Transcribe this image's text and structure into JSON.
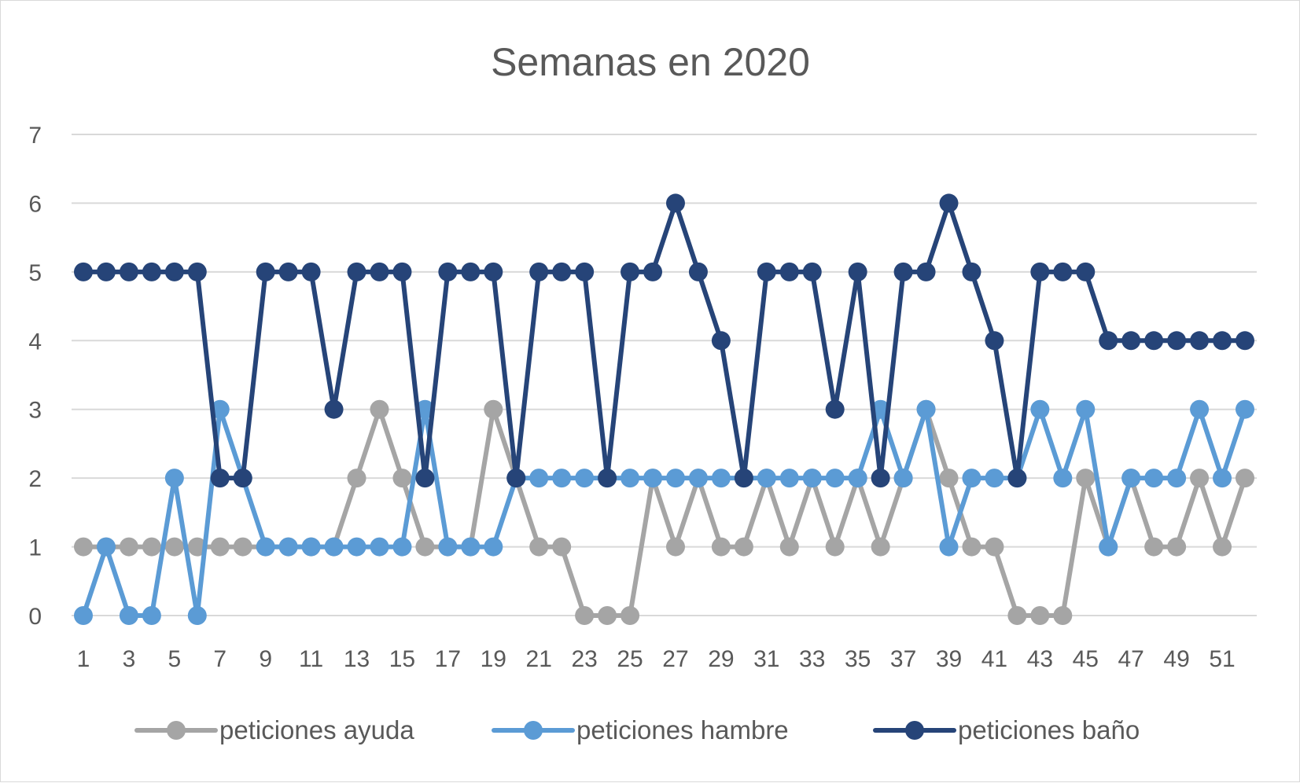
{
  "chart_data": {
    "type": "line",
    "title": "Semanas en 2020",
    "xlabel": "",
    "ylabel": "",
    "ylim": [
      0,
      7
    ],
    "yticks": [
      "0",
      "1",
      "2",
      "3",
      "4",
      "5",
      "6",
      "7"
    ],
    "x": [
      1,
      2,
      3,
      4,
      5,
      6,
      7,
      8,
      9,
      10,
      11,
      12,
      13,
      14,
      15,
      16,
      17,
      18,
      19,
      20,
      21,
      22,
      23,
      24,
      25,
      26,
      27,
      28,
      29,
      30,
      31,
      32,
      33,
      34,
      35,
      36,
      37,
      38,
      39,
      40,
      41,
      42,
      43,
      44,
      45,
      46,
      47,
      48,
      49,
      50,
      51,
      52
    ],
    "xtick_labels": [
      "1",
      "3",
      "5",
      "7",
      "9",
      "11",
      "13",
      "15",
      "17",
      "19",
      "21",
      "23",
      "25",
      "27",
      "29",
      "31",
      "33",
      "35",
      "37",
      "39",
      "41",
      "43",
      "45",
      "47",
      "49",
      "51"
    ],
    "grid": true,
    "legend_position": "bottom",
    "series": [
      {
        "name": "peticiones ayuda",
        "color": "#a5a5a5",
        "values": [
          1,
          1,
          1,
          1,
          1,
          1,
          1,
          1,
          1,
          1,
          1,
          1,
          2,
          3,
          2,
          1,
          1,
          1,
          3,
          2,
          1,
          1,
          0,
          0,
          0,
          2,
          1,
          2,
          1,
          1,
          2,
          1,
          2,
          1,
          2,
          1,
          2,
          3,
          2,
          1,
          1,
          0,
          0,
          0,
          2,
          1,
          2,
          1,
          1,
          2,
          1,
          2
        ]
      },
      {
        "name": "peticiones hambre",
        "color": "#5b9bd5",
        "values": [
          0,
          1,
          0,
          0,
          2,
          0,
          3,
          2,
          1,
          1,
          1,
          1,
          1,
          1,
          1,
          3,
          1,
          1,
          1,
          2,
          2,
          2,
          2,
          2,
          2,
          2,
          2,
          2,
          2,
          2,
          2,
          2,
          2,
          2,
          2,
          3,
          2,
          3,
          1,
          2,
          2,
          2,
          3,
          2,
          3,
          1,
          2,
          2,
          2,
          3,
          2,
          3
        ]
      },
      {
        "name": "peticiones baño",
        "color": "#264478",
        "values": [
          5,
          5,
          5,
          5,
          5,
          5,
          2,
          2,
          5,
          5,
          5,
          3,
          5,
          5,
          5,
          2,
          5,
          5,
          5,
          2,
          5,
          5,
          5,
          2,
          5,
          5,
          6,
          5,
          4,
          2,
          5,
          5,
          5,
          3,
          5,
          2,
          5,
          5,
          6,
          5,
          4,
          2,
          5,
          5,
          5,
          4,
          4,
          4,
          4,
          4,
          4,
          4
        ]
      }
    ]
  }
}
